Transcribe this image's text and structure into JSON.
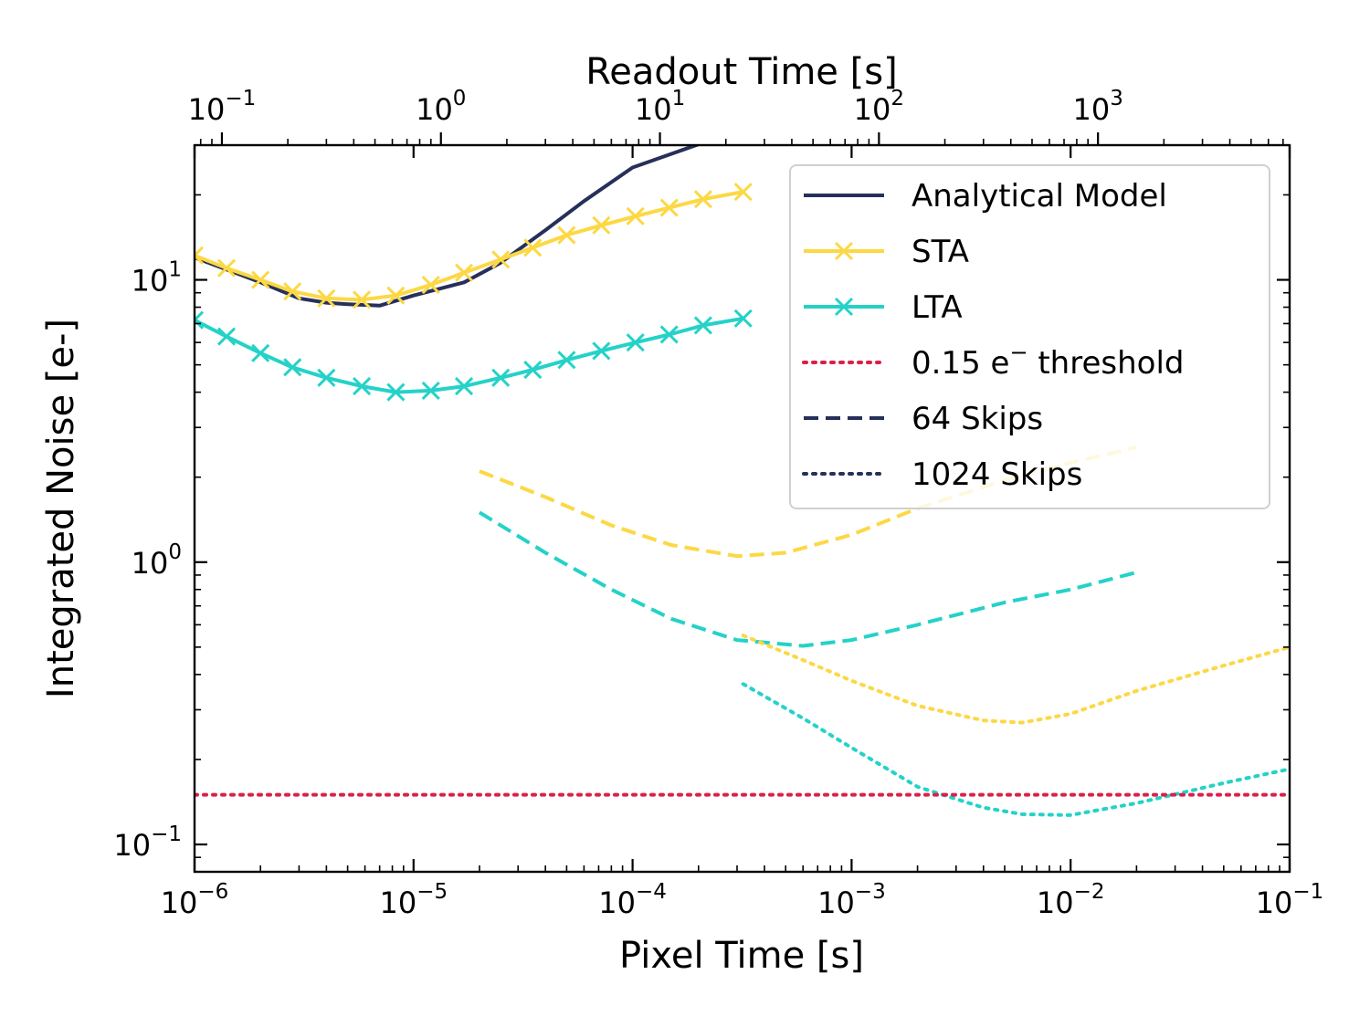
{
  "chart_data": {
    "type": "line",
    "title": "",
    "xlabel": "Pixel Time [s]",
    "ylabel": "Integrated Noise [e-]",
    "top_xlabel": "Readout Time [s]",
    "xscale": "log",
    "yscale": "log",
    "xlim": [
      1e-06,
      0.1
    ],
    "ylim": [
      0.08,
      30
    ],
    "top_xlim": [
      0.075,
      7500
    ],
    "x_ticks": [
      {
        "value": 1e-06,
        "base": "10",
        "exp": "−6"
      },
      {
        "value": 1e-05,
        "base": "10",
        "exp": "−5"
      },
      {
        "value": 0.0001,
        "base": "10",
        "exp": "−4"
      },
      {
        "value": 0.001,
        "base": "10",
        "exp": "−3"
      },
      {
        "value": 0.01,
        "base": "10",
        "exp": "−2"
      },
      {
        "value": 0.1,
        "base": "10",
        "exp": "−1"
      }
    ],
    "y_ticks": [
      {
        "value": 0.1,
        "base": "10",
        "exp": "−1"
      },
      {
        "value": 1,
        "base": "10",
        "exp": "0"
      },
      {
        "value": 10,
        "base": "10",
        "exp": "1"
      }
    ],
    "top_ticks": [
      {
        "value": 0.1,
        "base": "10",
        "exp": "−1"
      },
      {
        "value": 1,
        "base": "10",
        "exp": "0"
      },
      {
        "value": 10,
        "base": "10",
        "exp": "1"
      },
      {
        "value": 100,
        "base": "10",
        "exp": "2"
      },
      {
        "value": 1000,
        "base": "10",
        "exp": "3"
      }
    ],
    "grid": false,
    "legend": {
      "position": "top-right",
      "entries": [
        {
          "label": "Analytical Model",
          "color": "#26305a",
          "style": "solid",
          "marker": "none"
        },
        {
          "label": "STA",
          "color": "#fcd844",
          "style": "solid",
          "marker": "x"
        },
        {
          "label": "LTA",
          "color": "#24d2c8",
          "style": "solid",
          "marker": "x"
        },
        {
          "label_main": "0.15 e",
          "label_sup": "−",
          "label_tail": " threshold",
          "color": "#dc1e4b",
          "style": "dotted",
          "marker": "none"
        },
        {
          "label": "64 Skips",
          "color": "#26305a",
          "style": "dashed",
          "marker": "none"
        },
        {
          "label": "1024 Skips",
          "color": "#26305a",
          "style": "dotted",
          "marker": "none"
        }
      ]
    },
    "series": [
      {
        "name": "Analytical Model",
        "color": "#26305a",
        "style": "solid",
        "marker": "none",
        "x": [
          1e-06,
          2e-06,
          3e-06,
          4e-06,
          5e-06,
          7e-06,
          1e-05,
          1.7e-05,
          2.5e-05,
          4e-05,
          6e-05,
          0.0001,
          0.00022
        ],
        "y": [
          12.0,
          9.8,
          8.6,
          8.3,
          8.2,
          8.1,
          8.8,
          9.8,
          11.5,
          15.0,
          19.0,
          25.0,
          31.0
        ]
      },
      {
        "name": "STA",
        "color": "#fcd844",
        "style": "solid",
        "marker": "x",
        "x": [
          1e-06,
          1.4e-06,
          2e-06,
          2.8e-06,
          4e-06,
          5.8e-06,
          8.3e-06,
          1.2e-05,
          1.7e-05,
          2.5e-05,
          3.5e-05,
          5e-05,
          7.2e-05,
          0.000103,
          0.000147,
          0.00021,
          0.00032
        ],
        "y": [
          12.2,
          11.0,
          10.0,
          9.1,
          8.6,
          8.5,
          8.8,
          9.6,
          10.6,
          11.8,
          13.0,
          14.4,
          15.6,
          16.8,
          18.0,
          19.3,
          20.5
        ]
      },
      {
        "name": "LTA",
        "color": "#24d2c8",
        "style": "solid",
        "marker": "x",
        "x": [
          1e-06,
          1.4e-06,
          2e-06,
          2.8e-06,
          4e-06,
          5.8e-06,
          8.3e-06,
          1.2e-05,
          1.7e-05,
          2.5e-05,
          3.5e-05,
          5e-05,
          7.2e-05,
          0.000103,
          0.000147,
          0.00021,
          0.00032
        ],
        "y": [
          7.2,
          6.3,
          5.5,
          4.9,
          4.5,
          4.2,
          4.0,
          4.05,
          4.2,
          4.5,
          4.8,
          5.2,
          5.6,
          6.0,
          6.4,
          6.9,
          7.3
        ]
      },
      {
        "name": "STA 64 Skips",
        "color": "#fcd844",
        "style": "dashed",
        "marker": "none",
        "x": [
          2e-05,
          4e-05,
          8e-05,
          0.00015,
          0.0003,
          0.0005,
          0.001,
          0.002,
          0.005,
          0.01,
          0.02
        ],
        "y": [
          2.1,
          1.7,
          1.35,
          1.15,
          1.05,
          1.08,
          1.25,
          1.55,
          1.95,
          2.25,
          2.55
        ]
      },
      {
        "name": "LTA 64 Skips",
        "color": "#24d2c8",
        "style": "dashed",
        "marker": "none",
        "x": [
          2e-05,
          4e-05,
          8e-05,
          0.00015,
          0.0003,
          0.0006,
          0.001,
          0.002,
          0.005,
          0.01,
          0.02
        ],
        "y": [
          1.5,
          1.08,
          0.8,
          0.63,
          0.53,
          0.505,
          0.53,
          0.6,
          0.72,
          0.8,
          0.92
        ]
      },
      {
        "name": "STA 1024 Skips",
        "color": "#fcd844",
        "style": "dotted",
        "marker": "none",
        "x": [
          0.00032,
          0.0006,
          0.001,
          0.002,
          0.004,
          0.006,
          0.01,
          0.02,
          0.05,
          0.1
        ],
        "y": [
          0.55,
          0.45,
          0.38,
          0.31,
          0.275,
          0.27,
          0.29,
          0.35,
          0.43,
          0.5
        ]
      },
      {
        "name": "LTA 1024 Skips",
        "color": "#24d2c8",
        "style": "dotted",
        "marker": "none",
        "x": [
          0.00032,
          0.0006,
          0.001,
          0.002,
          0.004,
          0.006,
          0.01,
          0.02,
          0.05,
          0.1
        ],
        "y": [
          0.37,
          0.28,
          0.22,
          0.16,
          0.135,
          0.128,
          0.127,
          0.14,
          0.165,
          0.185
        ]
      },
      {
        "name": "0.15 e- threshold",
        "color": "#dc1e4b",
        "style": "dotted",
        "marker": "none",
        "x": [
          1e-06,
          0.1
        ],
        "y": [
          0.15,
          0.15
        ]
      }
    ]
  }
}
